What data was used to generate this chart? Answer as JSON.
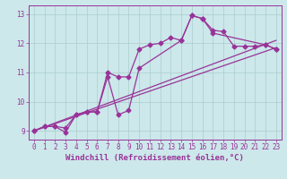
{
  "xlabel": "Windchill (Refroidissement éolien,°C)",
  "xlim": [
    -0.5,
    23.5
  ],
  "ylim": [
    8.7,
    13.3
  ],
  "xticks": [
    0,
    1,
    2,
    3,
    4,
    5,
    6,
    7,
    8,
    9,
    10,
    11,
    12,
    13,
    14,
    15,
    16,
    17,
    18,
    19,
    20,
    21,
    22,
    23
  ],
  "yticks": [
    9,
    10,
    11,
    12,
    13
  ],
  "bg_color": "#cce8ea",
  "grid_color": "#aacccc",
  "line_color": "#993399",
  "line1_x": [
    0,
    1,
    2,
    3,
    4,
    5,
    6,
    7,
    8,
    9,
    10,
    11,
    12,
    13,
    14,
    15,
    16,
    17,
    18,
    19,
    20,
    21,
    22,
    23
  ],
  "line1_y": [
    9.0,
    9.15,
    9.15,
    8.95,
    9.55,
    9.65,
    9.65,
    11.0,
    10.85,
    10.85,
    11.8,
    11.95,
    12.0,
    12.2,
    12.1,
    12.95,
    12.85,
    12.45,
    12.4,
    11.9,
    11.9,
    11.9,
    11.95,
    11.8
  ],
  "line2_x": [
    0,
    1,
    2,
    3,
    4,
    5,
    6,
    7,
    8,
    9,
    10,
    14,
    15,
    16,
    17,
    22,
    23
  ],
  "line2_y": [
    9.0,
    9.15,
    9.15,
    9.1,
    9.55,
    9.65,
    9.65,
    10.85,
    9.55,
    9.7,
    11.15,
    12.1,
    12.95,
    12.85,
    12.35,
    11.95,
    11.8
  ],
  "line3_x": [
    0,
    23
  ],
  "line3_y": [
    9.0,
    11.85
  ],
  "line4_x": [
    0,
    23
  ],
  "line4_y": [
    9.0,
    12.1
  ],
  "marker": "D",
  "markersize": 2.5,
  "linewidth": 0.9,
  "tick_fontsize": 5.5,
  "xlabel_fontsize": 6.5
}
